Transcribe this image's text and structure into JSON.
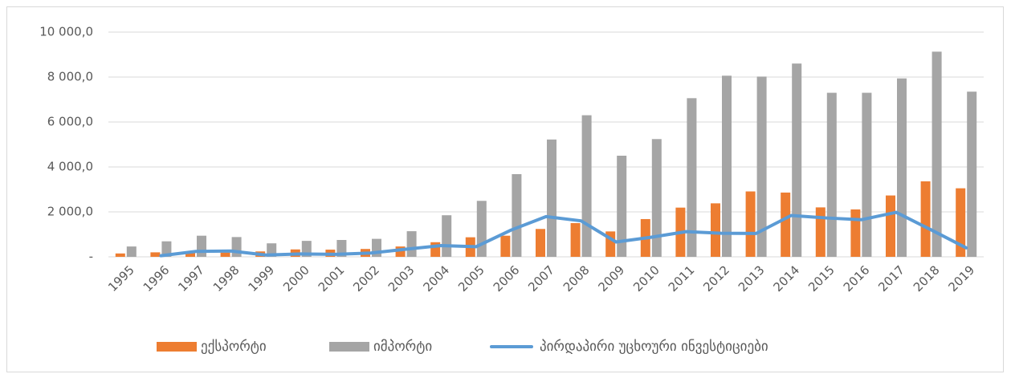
{
  "chart_data": {
    "type": "bar_line",
    "categories": [
      "1995",
      "1996",
      "1997",
      "1998",
      "1999",
      "2000",
      "2001",
      "2002",
      "2003",
      "2004",
      "2005",
      "2006",
      "2007",
      "2008",
      "2009",
      "2010",
      "2011",
      "2012",
      "2013",
      "2014",
      "2015",
      "2016",
      "2017",
      "2018",
      "2019"
    ],
    "series": [
      {
        "name": "ექსპორტი",
        "color": "#ed7d31",
        "type": "bar",
        "values": [
          150,
          200,
          240,
          190,
          240,
          330,
          320,
          350,
          460,
          650,
          870,
          940,
          1240,
          1500,
          1130,
          1680,
          2190,
          2380,
          2910,
          2860,
          2200,
          2110,
          2730,
          3360,
          3050
        ]
      },
      {
        "name": "იმპორტი",
        "color": "#a5a5a5",
        "type": "bar",
        "values": [
          460,
          690,
          940,
          880,
          600,
          710,
          750,
          800,
          1140,
          1850,
          2490,
          3680,
          5220,
          6300,
          4500,
          5240,
          7060,
          8060,
          8020,
          8600,
          7300,
          7300,
          7940,
          9130,
          7350
        ]
      },
      {
        "name": "პირდაპირი უცხოური ინვესტიციები",
        "color": "#5b9bd5",
        "type": "line",
        "values": [
          null,
          50,
          240,
          260,
          80,
          130,
          110,
          170,
          340,
          500,
          450,
          1190,
          1790,
          1600,
          660,
          870,
          1120,
          1050,
          1040,
          1840,
          1730,
          1650,
          1980,
          1200,
          400
        ]
      }
    ],
    "ylim": [
      0,
      10000
    ],
    "yticks": [
      {
        "value": 0,
        "label": "-"
      },
      {
        "value": 2000,
        "label": "2 000,0"
      },
      {
        "value": 4000,
        "label": "4 000,0"
      },
      {
        "value": 6000,
        "label": "6 000,0"
      },
      {
        "value": 8000,
        "label": "8 000,0"
      },
      {
        "value": 10000,
        "label": "10 000,0"
      }
    ],
    "grid": true,
    "legend": "bottom"
  }
}
